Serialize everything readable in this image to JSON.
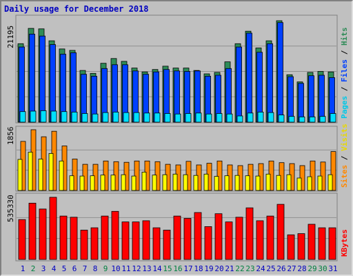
{
  "title": "Daily usage for December 2018",
  "colors": {
    "hits": "#2e8b57",
    "files": "#0040ff",
    "pages": "#00e0ff",
    "visits": "#ffff00",
    "sites": "#ff8800",
    "kbytes": "#ff0000",
    "day_normal": "#0000c0",
    "day_weekend": "#008040"
  },
  "chart_data": [
    {
      "type": "bar",
      "panel": "hits-files-pages",
      "y_max_label": "21195",
      "ylim": [
        0,
        21195
      ],
      "series_labels": [
        "Pages",
        "Files",
        "Hits"
      ],
      "categories": [
        "1",
        "2",
        "3",
        "4",
        "5",
        "6",
        "7",
        "8",
        "9",
        "10",
        "11",
        "12",
        "13",
        "14",
        "15",
        "16",
        "17",
        "18",
        "19",
        "20",
        "21",
        "22",
        "23",
        "24",
        "25",
        "26",
        "27",
        "28",
        "29",
        "30",
        "31"
      ],
      "series": [
        {
          "name": "Hits",
          "values": [
            16400,
            19600,
            19500,
            17000,
            15300,
            15000,
            10800,
            10200,
            12300,
            13300,
            12700,
            11300,
            10500,
            11000,
            11700,
            11300,
            11300,
            10800,
            10100,
            10400,
            12600,
            16400,
            19000,
            15500,
            17000,
            21195,
            9900,
            8400,
            10400,
            10600,
            10500
          ]
        },
        {
          "name": "Files",
          "values": [
            15700,
            18400,
            18000,
            16200,
            14200,
            14500,
            10000,
            9600,
            11200,
            12000,
            12000,
            10700,
            10000,
            10500,
            11000,
            10700,
            10600,
            10700,
            9600,
            9800,
            11200,
            15700,
            18600,
            14600,
            16400,
            20800,
            9500,
            8100,
            9700,
            9800,
            9300
          ]
        },
        {
          "name": "Pages",
          "values": [
            2200,
            2300,
            2400,
            2300,
            2200,
            2100,
            1800,
            1700,
            2000,
            2100,
            2000,
            2000,
            1900,
            1900,
            1800,
            1700,
            1800,
            1900,
            1700,
            1800,
            1700,
            1300,
            1900,
            2100,
            2000,
            1500,
            1200,
            1100,
            1100,
            1200,
            1800
          ]
        }
      ]
    },
    {
      "type": "bar",
      "panel": "sites-visits",
      "y_max_label": "1856",
      "ylim": [
        0,
        1856
      ],
      "series_labels": [
        "Sites",
        "Visits"
      ],
      "categories": [
        "1",
        "2",
        "3",
        "4",
        "5",
        "6",
        "7",
        "8",
        "9",
        "10",
        "11",
        "12",
        "13",
        "14",
        "15",
        "16",
        "17",
        "18",
        "19",
        "20",
        "21",
        "22",
        "23",
        "24",
        "25",
        "26",
        "27",
        "28",
        "29",
        "30",
        "31"
      ],
      "series": [
        {
          "name": "Sites",
          "values": [
            1500,
            1856,
            1640,
            1810,
            1360,
            960,
            800,
            800,
            900,
            880,
            860,
            900,
            900,
            880,
            800,
            780,
            890,
            780,
            830,
            900,
            780,
            760,
            800,
            820,
            900,
            850,
            820,
            760,
            900,
            870,
            1190
          ]
        },
        {
          "name": "Visits",
          "values": [
            950,
            1170,
            960,
            1130,
            900,
            450,
            440,
            450,
            470,
            470,
            480,
            440,
            560,
            470,
            480,
            500,
            480,
            460,
            500,
            430,
            450,
            460,
            450,
            440,
            500,
            460,
            480,
            380,
            420,
            440,
            480
          ]
        }
      ]
    },
    {
      "type": "bar",
      "panel": "kbytes",
      "y_max_label": "535330",
      "ylim": [
        0,
        535330
      ],
      "series_labels": [
        "KBytes"
      ],
      "categories": [
        "1",
        "2",
        "3",
        "4",
        "5",
        "6",
        "7",
        "8",
        "9",
        "10",
        "11",
        "12",
        "13",
        "14",
        "15",
        "16",
        "17",
        "18",
        "19",
        "20",
        "21",
        "22",
        "23",
        "24",
        "25",
        "26",
        "27",
        "28",
        "29",
        "30",
        "31"
      ],
      "series": [
        {
          "name": "KBytes",
          "values": [
            340000,
            480000,
            430000,
            530000,
            370000,
            360000,
            250000,
            270000,
            370000,
            410000,
            320000,
            320000,
            330000,
            270000,
            250000,
            370000,
            350000,
            400000,
            280000,
            390000,
            320000,
            360000,
            440000,
            330000,
            370000,
            470000,
            210000,
            220000,
            300000,
            270000,
            270000
          ]
        }
      ]
    }
  ],
  "weekend_days": [
    2,
    9,
    15,
    16,
    22,
    23,
    29,
    30
  ]
}
